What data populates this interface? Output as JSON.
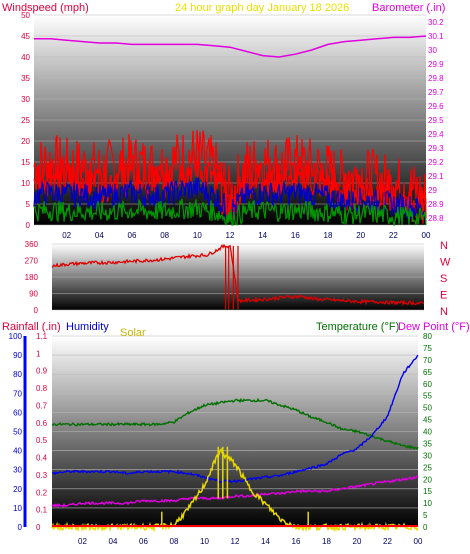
{
  "header": {
    "left_label": "Windspeed (mph)",
    "center_label": "24 hour graph day   January 18 2026",
    "right_label": "Barometer (.in)"
  },
  "colors": {
    "wind_label": "#e0003c",
    "title": "#e8e000",
    "barometer": "#e000e0",
    "wind_gust": "#ff0000",
    "wind_avg": "#0000cc",
    "wind_low": "#009900",
    "direction": "#dd0000",
    "rain_label": "#e0003c",
    "humidity_label": "#0000cc",
    "solar": "#e8d800",
    "temperature": "#007000",
    "dewpoint": "#e000e0",
    "humidity_line": "#0000ee",
    "rain_axis": "#0000ff",
    "tick_text": "#e0003c"
  },
  "x_ticks": [
    "02",
    "04",
    "06",
    "08",
    "10",
    "12",
    "14",
    "16",
    "18",
    "20",
    "22",
    "00"
  ],
  "wind_panel": {
    "left_axis": [
      "50",
      "45",
      "40",
      "35",
      "30",
      "25",
      "20",
      "15",
      "10",
      "5",
      "0"
    ],
    "right_axis": [
      "30.2",
      "30.1",
      "30",
      "29.9",
      "29.8",
      "29.7",
      "29.6",
      "29.5",
      "29.4",
      "29.3",
      "29.2",
      "29.1",
      "29",
      "28.9",
      "28.8"
    ]
  },
  "direction_panel": {
    "left_axis": [
      "360",
      "270",
      "180",
      "90",
      "0"
    ],
    "right_labels": [
      "N",
      "W",
      "S",
      "E",
      "N"
    ]
  },
  "bottom_panel": {
    "rain_label": "Rainfall (.in)",
    "humidity_label": "Humidity",
    "solar_label": "Solar",
    "temp_label": "Temperature (°F)",
    "dew_label": "Dew Point (°F)",
    "humidity_axis": [
      "100",
      "90",
      "80",
      "70",
      "60",
      "50",
      "40",
      "30",
      "20",
      "10",
      "0"
    ],
    "rain_axis": [
      "1.1",
      "1",
      "0.9",
      "0.8",
      "0.7",
      "0.6",
      "0.5",
      "0.4",
      "0.3",
      "0.2",
      "0.1",
      "0"
    ],
    "temp_axis": [
      "80",
      "75",
      "70",
      "65",
      "60",
      "55",
      "50",
      "45",
      "40",
      "35",
      "30",
      "25",
      "20",
      "15",
      "10",
      "5",
      "0"
    ]
  },
  "chart_data": [
    {
      "type": "line",
      "x": [
        0,
        1,
        2,
        3,
        4,
        5,
        6,
        7,
        8,
        9,
        10,
        11,
        12,
        13,
        14,
        15,
        16,
        17,
        18,
        19,
        20,
        21,
        22,
        23,
        24
      ],
      "xlabel": "",
      "ylim_left": [
        0,
        50
      ],
      "ylim_right": [
        28.75,
        30.25
      ],
      "series": [
        {
          "name": "Windspeed (mph)",
          "values": [
            13,
            14,
            13,
            13,
            12,
            13,
            14,
            13,
            13,
            15,
            16,
            13,
            6,
            13,
            14,
            13,
            14,
            13,
            12,
            10,
            11,
            10,
            9,
            8,
            6
          ]
        },
        {
          "name": "Barometer (.in)",
          "values": [
            30.08,
            30.08,
            30.07,
            30.06,
            30.05,
            30.05,
            30.04,
            30.04,
            30.04,
            30.04,
            30.04,
            30.03,
            30.02,
            29.99,
            29.96,
            29.95,
            29.97,
            30.0,
            30.04,
            30.06,
            30.07,
            30.08,
            30.09,
            30.09,
            30.1
          ]
        }
      ]
    },
    {
      "type": "line",
      "x": [
        0,
        1,
        2,
        3,
        4,
        5,
        6,
        7,
        8,
        9,
        10,
        10.5,
        11,
        11.5,
        12,
        13,
        14,
        15,
        16,
        17,
        18,
        19,
        20,
        21,
        22,
        23,
        24
      ],
      "ylim": [
        0,
        360
      ],
      "series": [
        {
          "name": "Wind direction",
          "values": [
            240,
            250,
            255,
            258,
            260,
            265,
            270,
            275,
            285,
            295,
            300,
            320,
            345,
            350,
            50,
            55,
            60,
            70,
            75,
            60,
            55,
            50,
            45,
            45,
            40,
            40,
            35
          ]
        }
      ]
    },
    {
      "type": "line",
      "x": [
        0,
        1,
        2,
        3,
        4,
        5,
        6,
        7,
        8,
        9,
        10,
        11,
        12,
        13,
        14,
        15,
        16,
        17,
        18,
        19,
        20,
        21,
        22,
        23,
        24
      ],
      "ylim_humidity": [
        0,
        100
      ],
      "ylim_rain": [
        0,
        1.1
      ],
      "ylim_temp": [
        0,
        80
      ],
      "series": [
        {
          "name": "Temperature (°F)",
          "values": [
            43,
            43,
            43,
            43,
            43,
            43,
            43,
            43,
            44,
            48,
            51,
            52,
            53,
            53,
            53,
            51,
            49,
            46,
            44,
            41,
            40,
            38,
            36,
            34,
            33
          ]
        },
        {
          "name": "Dew Point (°F)",
          "values": [
            9,
            9,
            10,
            10,
            10,
            10,
            11,
            11,
            11,
            12,
            12,
            12,
            13,
            13,
            14,
            14,
            15,
            15,
            15,
            16,
            17,
            18,
            19,
            20,
            21
          ]
        },
        {
          "name": "Humidity",
          "values": [
            28,
            29,
            29,
            29,
            29,
            28,
            29,
            29,
            29,
            28,
            26,
            24,
            24,
            25,
            26,
            27,
            29,
            31,
            33,
            38,
            41,
            48,
            58,
            80,
            90
          ]
        },
        {
          "name": "Solar",
          "values": [
            0,
            0,
            0,
            0,
            0,
            0,
            0,
            0,
            1,
            10,
            22,
            40,
            33,
            20,
            12,
            4,
            0,
            0,
            0,
            0,
            0,
            0,
            0,
            0,
            0
          ]
        },
        {
          "name": "Rainfall (.in)",
          "values": [
            0,
            0,
            0,
            0,
            0,
            0,
            0,
            0,
            0,
            0,
            0,
            0,
            0,
            0,
            0,
            0,
            0,
            0,
            0,
            0,
            0,
            0,
            0,
            0,
            0
          ]
        }
      ]
    }
  ]
}
